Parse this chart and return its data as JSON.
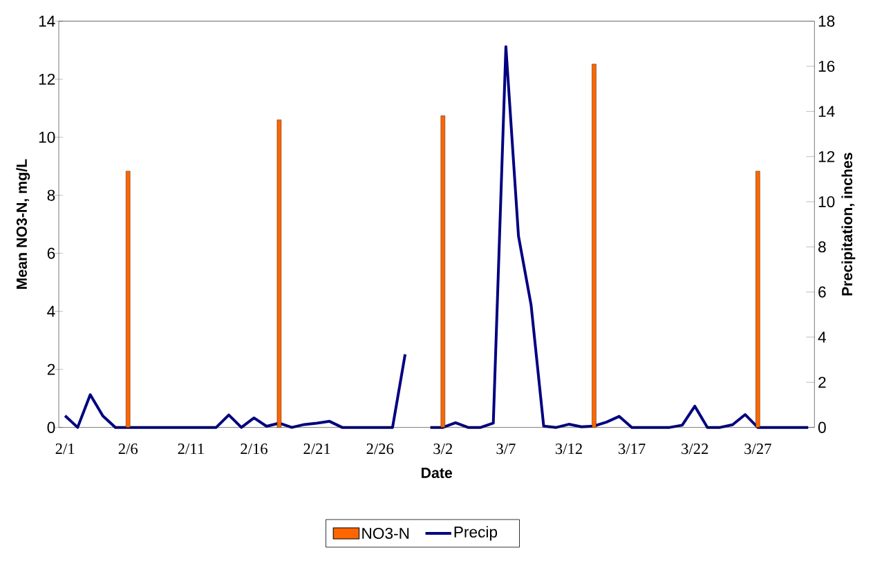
{
  "chart_data": {
    "type": "bar",
    "xlabel": "Date",
    "ylabel": "Mean NO3-N, mg/L",
    "y2label": "Precipitation, inches",
    "categories": [
      "2/1",
      null,
      null,
      null,
      null,
      "2/6",
      null,
      null,
      null,
      null,
      "2/11",
      null,
      null,
      null,
      null,
      "2/16",
      null,
      null,
      null,
      null,
      "2/21",
      null,
      null,
      null,
      null,
      "2/26",
      null,
      null,
      null,
      null,
      "3/2",
      null,
      null,
      null,
      null,
      "3/7",
      null,
      null,
      null,
      null,
      "3/12",
      null,
      null,
      null,
      null,
      "3/17",
      null,
      null,
      null,
      null,
      "3/22",
      null,
      null,
      null,
      null,
      "3/27",
      null,
      null,
      null,
      null
    ],
    "series": [
      {
        "name": "NO3-N",
        "color": "#ff6600",
        "values": [
          null,
          null,
          null,
          null,
          null,
          8.83,
          null,
          null,
          null,
          null,
          null,
          null,
          null,
          null,
          null,
          null,
          null,
          10.6,
          null,
          null,
          null,
          null,
          null,
          null,
          null,
          null,
          null,
          null,
          null,
          null,
          10.74,
          null,
          null,
          null,
          null,
          null,
          null,
          null,
          null,
          null,
          null,
          null,
          12.52,
          null,
          null,
          null,
          null,
          null,
          null,
          null,
          null,
          null,
          null,
          null,
          null,
          8.83,
          null,
          null,
          null,
          null
        ]
      },
      {
        "name": "Precip",
        "type": "line",
        "axis": "y2",
        "color": "#000080",
        "values": [
          0.52,
          0,
          1.45,
          0.51,
          0,
          0,
          0,
          0,
          0,
          0,
          0,
          0,
          0,
          0.55,
          0,
          0.42,
          0.05,
          0.19,
          0,
          0.13,
          0.19,
          0.27,
          0,
          0,
          0,
          0,
          0,
          3.24,
          null,
          0,
          0,
          0.21,
          0,
          0,
          0.19,
          16.87,
          8.48,
          5.43,
          0.06,
          0,
          0.14,
          0.03,
          0.06,
          0.24,
          0.49,
          0,
          0,
          0,
          0,
          0.1,
          0.94,
          0,
          0,
          0.12,
          0.57,
          0,
          0,
          0,
          0,
          0
        ]
      }
    ],
    "ylim": [
      0,
      14
    ],
    "yticks": [
      0,
      2,
      4,
      6,
      8,
      10,
      12,
      14
    ],
    "y2lim": [
      0,
      18
    ],
    "y2ticks": [
      0,
      2,
      4,
      6,
      8,
      10,
      12,
      14,
      16,
      18
    ],
    "legend": "bottom",
    "grid": false
  }
}
